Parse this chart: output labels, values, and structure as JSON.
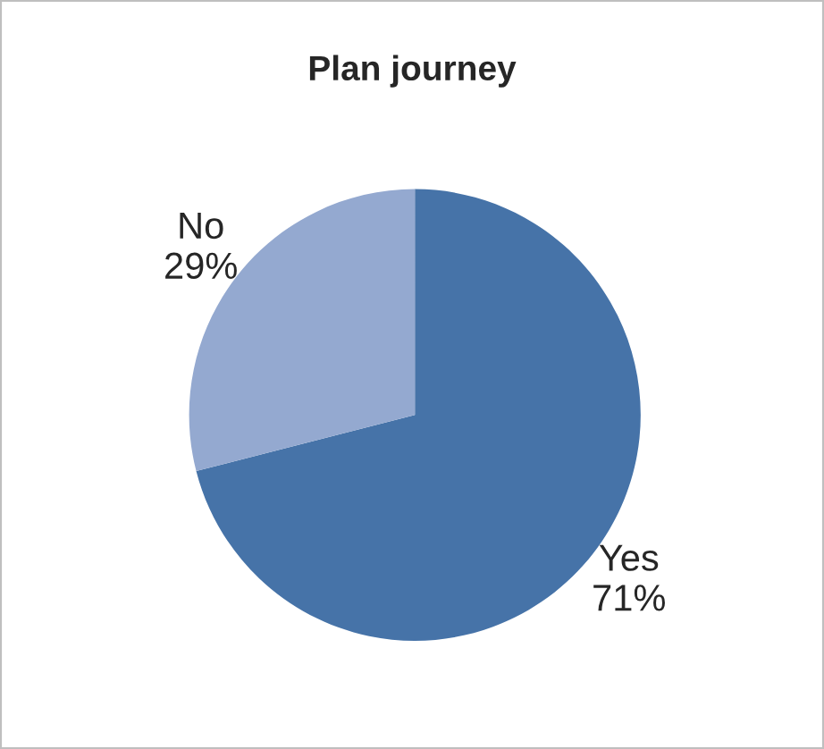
{
  "chart_data": {
    "type": "pie",
    "title": "Plan journey",
    "categories": [
      "Yes",
      "No"
    ],
    "values": [
      71,
      29
    ],
    "colors": [
      "#4673a8",
      "#94a9d0"
    ],
    "value_labels": [
      "71%",
      "29%"
    ]
  }
}
